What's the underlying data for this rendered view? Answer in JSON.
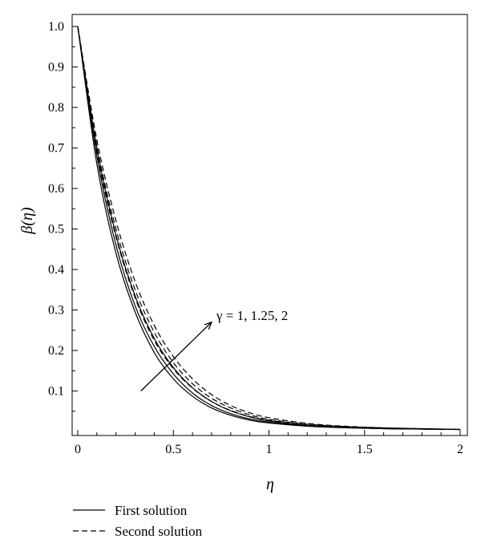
{
  "chart_data": {
    "type": "line",
    "title": "",
    "xlabel": "η",
    "ylabel": "β(η)",
    "xlim": [
      0,
      2
    ],
    "ylim": [
      0,
      1.0
    ],
    "xticks": [
      "0",
      "0.5",
      "1",
      "1.5",
      "2"
    ],
    "xtick_values": [
      0,
      0.5,
      1,
      1.5,
      2
    ],
    "yticks": [
      "0.1",
      "0.2",
      "0.3",
      "0.4",
      "0.5",
      "0.6",
      "0.7",
      "0.8",
      "0.9",
      "1.0"
    ],
    "ytick_values": [
      0.1,
      0.2,
      0.3,
      0.4,
      0.5,
      0.6,
      0.7,
      0.8,
      0.9,
      1.0
    ],
    "grid": false,
    "legend_position": "bottom-left, below plot",
    "annotation": {
      "text": "γ = 1, 1.25, 2",
      "arrow_from": [
        0.33,
        0.1
      ],
      "arrow_to": [
        0.7,
        0.27
      ]
    },
    "legend": [
      {
        "label": "First solution",
        "style": "solid"
      },
      {
        "label": "Second solution",
        "style": "dashed"
      }
    ],
    "series": [
      {
        "solution": "First solution",
        "gamma": "1",
        "style": "solid",
        "x": [
          0,
          0.1,
          0.2,
          0.3,
          0.4,
          0.5,
          0.6,
          0.7,
          0.8,
          0.9,
          1.0,
          1.2,
          1.4,
          1.6,
          1.8,
          2.0
        ],
        "y": [
          1.0,
          0.66,
          0.44,
          0.295,
          0.195,
          0.13,
          0.087,
          0.058,
          0.04,
          0.028,
          0.021,
          0.013,
          0.009,
          0.007,
          0.006,
          0.005
        ]
      },
      {
        "solution": "First solution",
        "gamma": "1.25",
        "style": "solid",
        "x": [
          0,
          0.1,
          0.2,
          0.3,
          0.4,
          0.5,
          0.6,
          0.7,
          0.8,
          0.9,
          1.0,
          1.2,
          1.4,
          1.6,
          1.8,
          2.0
        ],
        "y": [
          1.0,
          0.68,
          0.46,
          0.31,
          0.21,
          0.142,
          0.095,
          0.064,
          0.044,
          0.031,
          0.023,
          0.014,
          0.01,
          0.007,
          0.006,
          0.005
        ]
      },
      {
        "solution": "First solution",
        "gamma": "2",
        "style": "solid",
        "x": [
          0,
          0.1,
          0.2,
          0.3,
          0.4,
          0.5,
          0.6,
          0.7,
          0.8,
          0.9,
          1.0,
          1.2,
          1.4,
          1.6,
          1.8,
          2.0
        ],
        "y": [
          1.0,
          0.7,
          0.485,
          0.335,
          0.23,
          0.158,
          0.108,
          0.074,
          0.051,
          0.036,
          0.026,
          0.015,
          0.01,
          0.008,
          0.006,
          0.005
        ]
      },
      {
        "solution": "Second solution",
        "gamma": "1",
        "style": "dashed",
        "x": [
          0,
          0.1,
          0.2,
          0.3,
          0.4,
          0.5,
          0.6,
          0.7,
          0.8,
          0.9,
          1.0,
          1.2,
          1.4,
          1.6,
          1.8,
          2.0
        ],
        "y": [
          1.0,
          0.69,
          0.48,
          0.33,
          0.225,
          0.155,
          0.107,
          0.074,
          0.052,
          0.037,
          0.028,
          0.017,
          0.011,
          0.008,
          0.006,
          0.005
        ]
      },
      {
        "solution": "Second solution",
        "gamma": "1.25",
        "style": "dashed",
        "x": [
          0,
          0.1,
          0.2,
          0.3,
          0.4,
          0.5,
          0.6,
          0.7,
          0.8,
          0.9,
          1.0,
          1.2,
          1.4,
          1.6,
          1.8,
          2.0
        ],
        "y": [
          1.0,
          0.705,
          0.5,
          0.35,
          0.245,
          0.17,
          0.118,
          0.082,
          0.058,
          0.041,
          0.03,
          0.018,
          0.012,
          0.009,
          0.007,
          0.005
        ]
      },
      {
        "solution": "Second solution",
        "gamma": "2",
        "style": "dashed",
        "x": [
          0,
          0.1,
          0.2,
          0.3,
          0.4,
          0.5,
          0.6,
          0.7,
          0.8,
          0.9,
          1.0,
          1.2,
          1.4,
          1.6,
          1.8,
          2.0
        ],
        "y": [
          1.0,
          0.72,
          0.52,
          0.37,
          0.262,
          0.185,
          0.13,
          0.091,
          0.064,
          0.046,
          0.034,
          0.02,
          0.013,
          0.009,
          0.007,
          0.005
        ]
      }
    ]
  }
}
